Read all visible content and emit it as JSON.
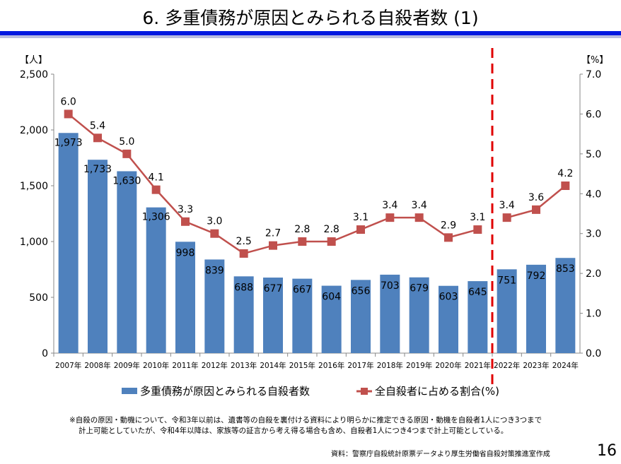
{
  "title": "6. 多重債務が原因とみられる自殺者数 (1)",
  "chart_data": {
    "type": "bar+line",
    "categories": [
      "2007年",
      "2008年",
      "2009年",
      "2010年",
      "2011年",
      "2012年",
      "2013年",
      "2014年",
      "2015年",
      "2016年",
      "2017年",
      "2018年",
      "2019年",
      "2020年",
      "2021年",
      "2022年",
      "2023年",
      "2024年"
    ],
    "series": [
      {
        "name": "多重債務が原因とみられる自殺者数",
        "type": "bar",
        "axis": "left",
        "color": "#4f81bd",
        "values": [
          1973,
          1733,
          1630,
          1306,
          998,
          839,
          688,
          677,
          667,
          604,
          656,
          703,
          679,
          603,
          645,
          751,
          792,
          853
        ],
        "labels": [
          "1,973",
          "1,733",
          "1,630",
          "1,306",
          "998",
          "839",
          "688",
          "677",
          "667",
          "604",
          "656",
          "703",
          "679",
          "603",
          "645",
          "751",
          "792",
          "853"
        ]
      },
      {
        "name": "全自殺者に占める割合(%)",
        "type": "line",
        "axis": "right",
        "color": "#c0504d",
        "values": [
          6.0,
          5.4,
          5.0,
          4.1,
          3.3,
          3.0,
          2.5,
          2.7,
          2.8,
          2.8,
          3.1,
          3.4,
          3.4,
          2.9,
          3.1,
          3.4,
          3.6,
          4.2
        ],
        "labels": [
          "6.0",
          "5.4",
          "5.0",
          "4.1",
          "3.3",
          "3.0",
          "2.5",
          "2.7",
          "2.8",
          "2.8",
          "3.1",
          "3.4",
          "3.4",
          "2.9",
          "3.1",
          "3.4",
          "3.6",
          "4.2"
        ]
      }
    ],
    "ylabel_left": "【人】",
    "ylabel_right": "【%】",
    "ylim_left": [
      0,
      2500
    ],
    "yticks_left": [
      "0",
      "500",
      "1,000",
      "1,500",
      "2,000",
      "2,500"
    ],
    "ylim_right": [
      0,
      7
    ],
    "yticks_right": [
      "0.0",
      "1.0",
      "2.0",
      "3.0",
      "4.0",
      "5.0",
      "6.0",
      "7.0"
    ],
    "divider_between": [
      "2021年",
      "2022年"
    ],
    "legend_position": "bottom"
  },
  "note_line1": "※自殺の原因・動機について、令和3年以前は、遺書等の自殺を裏付ける資料により明らかに推定できる原因・動機を自殺者1人につき3つまで",
  "note_line2": "計上可能としていたが、令和4年以降は、家族等の証言から考え得る場合も含め、自殺者1人につき4つまで計上可能としている。",
  "source": "資料：警察庁自殺統計原票データより厚生労働省自殺対策推進室作成",
  "page_number": "16"
}
